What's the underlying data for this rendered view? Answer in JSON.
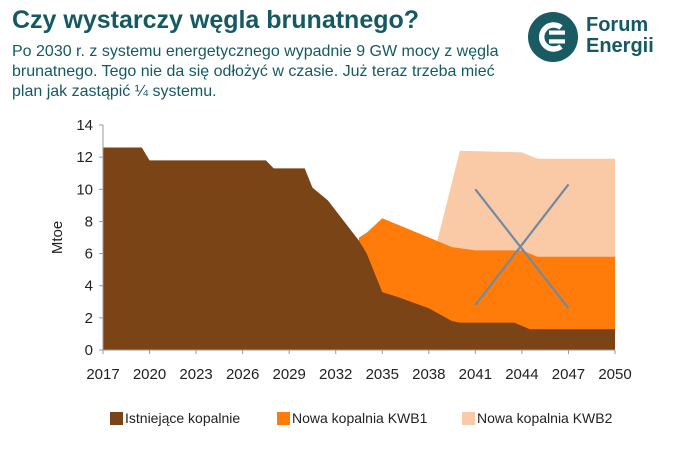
{
  "header": {
    "title": "Czy wystarczy węgla brunatnego?",
    "subtitle": "Po 2030 r. z systemu energetycznego wypadnie 9 GW mocy z węgla brunatnego. Tego nie da się odłożyć w czasie. Już teraz trzeba mieć plan jak zastąpić ¼ systemu."
  },
  "logo": {
    "line1": "Forum",
    "line2": "Energii",
    "icon": "forum-energii-logo-icon"
  },
  "colors": {
    "existing": "#7a4416",
    "kwb1": "#ff7c0a",
    "kwb2": "#fac9a6",
    "cross": "#6f8aa4",
    "text": "#155a63"
  },
  "chart_data": {
    "type": "area",
    "stacked": true,
    "xlabel": "",
    "ylabel": "Mtoe",
    "xlim": [
      2017,
      2050
    ],
    "ylim": [
      0,
      14
    ],
    "x_ticks": [
      2017,
      2020,
      2023,
      2026,
      2029,
      2032,
      2035,
      2038,
      2041,
      2044,
      2047,
      2050
    ],
    "y_ticks": [
      0,
      2,
      4,
      6,
      8,
      10,
      12,
      14
    ],
    "legend_position": "bottom",
    "series": [
      {
        "name": "Istniejące kopalnie",
        "color": "#7a4416",
        "points": [
          [
            2017,
            12.6
          ],
          [
            2019.5,
            12.6
          ],
          [
            2020,
            11.8
          ],
          [
            2027.5,
            11.8
          ],
          [
            2028,
            11.3
          ],
          [
            2030,
            11.3
          ],
          [
            2030.5,
            10.1
          ],
          [
            2031.5,
            9.3
          ],
          [
            2033.5,
            6.8
          ],
          [
            2034,
            6.0
          ],
          [
            2035,
            3.6
          ],
          [
            2036,
            3.3
          ],
          [
            2038,
            2.6
          ],
          [
            2039.5,
            1.8
          ],
          [
            2040,
            1.7
          ],
          [
            2043.5,
            1.7
          ],
          [
            2044.5,
            1.3
          ],
          [
            2050,
            1.3
          ]
        ]
      },
      {
        "name": "Nowa kopalnia KWB1",
        "color": "#ff7c0a",
        "points": [
          [
            2033.5,
            7.0
          ],
          [
            2034,
            7.3
          ],
          [
            2035,
            8.2
          ],
          [
            2038,
            7.0
          ],
          [
            2039.5,
            6.4
          ],
          [
            2041,
            6.2
          ],
          [
            2044,
            6.2
          ],
          [
            2045,
            5.8
          ],
          [
            2050,
            5.8
          ]
        ]
      },
      {
        "name": "Nowa kopalnia KWB2",
        "color": "#fac9a6",
        "points": [
          [
            2038.5,
            6.6
          ],
          [
            2040,
            12.4
          ],
          [
            2044,
            12.3
          ],
          [
            2045,
            11.9
          ],
          [
            2050,
            11.9
          ]
        ]
      }
    ],
    "annotations": [
      {
        "type": "line",
        "color": "#6f8aa4",
        "from": [
          2041,
          2.8
        ],
        "to": [
          2047,
          10.3
        ]
      },
      {
        "type": "line",
        "color": "#6f8aa4",
        "from": [
          2041,
          10.0
        ],
        "to": [
          2047,
          2.6
        ]
      }
    ]
  }
}
